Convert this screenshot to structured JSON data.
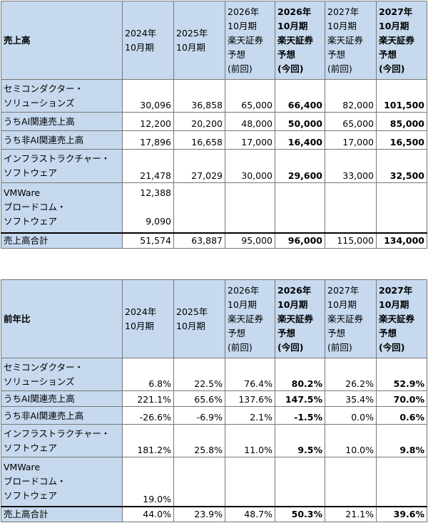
{
  "tables": [
    {
      "title": "売上高",
      "headers": [
        [
          "2024年",
          "10月期"
        ],
        [
          "2025年",
          "10月期"
        ],
        [
          "2026年",
          "10月期",
          "楽天証券",
          "予想",
          "(前回)"
        ],
        [
          "2026年",
          "10月期",
          "楽天証券",
          "予想",
          "(今回)"
        ],
        [
          "2027年",
          "10月期",
          "楽天証券",
          "予想",
          "(前回)"
        ],
        [
          "2027年",
          "10月期",
          "楽天証券",
          "予想",
          "(今回)"
        ]
      ],
      "rows": {
        "semi": {
          "label": [
            "セミコンダクター・",
            "ソリューションズ"
          ],
          "values": [
            "30,096",
            "36,858",
            "65,000",
            "66,400",
            "82,000",
            "101,500"
          ]
        },
        "ai": {
          "label": "うちAI関連売上高",
          "values": [
            "12,200",
            "20,200",
            "48,000",
            "50,000",
            "65,000",
            "85,000"
          ]
        },
        "nonai": {
          "label": "うち非AI関連売上高",
          "values": [
            "17,896",
            "16,658",
            "17,000",
            "16,400",
            "17,000",
            "16,500"
          ]
        },
        "infra": {
          "label": [
            "インフラストラクチャー・",
            "ソフトウェア"
          ],
          "values": [
            "21,478",
            "27,029",
            "30,000",
            "29,600",
            "33,000",
            "32,500"
          ]
        },
        "vmware": {
          "label": [
            "VMWare",
            "ブロードコム・",
            "ソフトウェア"
          ],
          "top": "12,388",
          "bottom": "9,090"
        },
        "total": {
          "label": "売上高合計",
          "values": [
            "51,574",
            "63,887",
            "95,000",
            "96,000",
            "115,000",
            "134,000"
          ]
        }
      }
    },
    {
      "title": "前年比",
      "headers": [
        [
          "2024年",
          "10月期"
        ],
        [
          "2025年",
          "10月期"
        ],
        [
          "2026年",
          "10月期",
          "楽天証券",
          "予想",
          "(前回)"
        ],
        [
          "2026年",
          "10月期",
          "楽天証券",
          "予想",
          "(今回)"
        ],
        [
          "2027年",
          "10月期",
          "楽天証券",
          "予想",
          "(前回)"
        ],
        [
          "2027年",
          "10月期",
          "楽天証券",
          "予想",
          "(今回)"
        ]
      ],
      "rows": {
        "semi": {
          "label": [
            "セミコンダクター・",
            "ソリューションズ"
          ],
          "values": [
            "6.8%",
            "22.5%",
            "76.4%",
            "80.2%",
            "26.2%",
            "52.9%"
          ]
        },
        "ai": {
          "label": "うちAI関連売上高",
          "values": [
            "221.1%",
            "65.6%",
            "137.6%",
            "147.5%",
            "35.4%",
            "70.0%"
          ]
        },
        "nonai": {
          "label": "うち非AI関連売上高",
          "values": [
            "-26.6%",
            "-6.9%",
            "2.1%",
            "-1.5%",
            "0.0%",
            "0.6%"
          ]
        },
        "infra": {
          "label": [
            "インフラストラクチャー・",
            "ソフトウェア"
          ],
          "values": [
            "181.2%",
            "25.8%",
            "11.0%",
            "9.5%",
            "10.0%",
            "9.8%"
          ]
        },
        "vmware": {
          "label": [
            "VMWare",
            "ブロードコム・",
            "ソフトウェア"
          ],
          "bottom": "19.0%"
        },
        "total": {
          "label": "売上高合計",
          "values": [
            "44.0%",
            "23.9%",
            "48.7%",
            "50.3%",
            "21.1%",
            "39.6%"
          ]
        }
      }
    }
  ]
}
